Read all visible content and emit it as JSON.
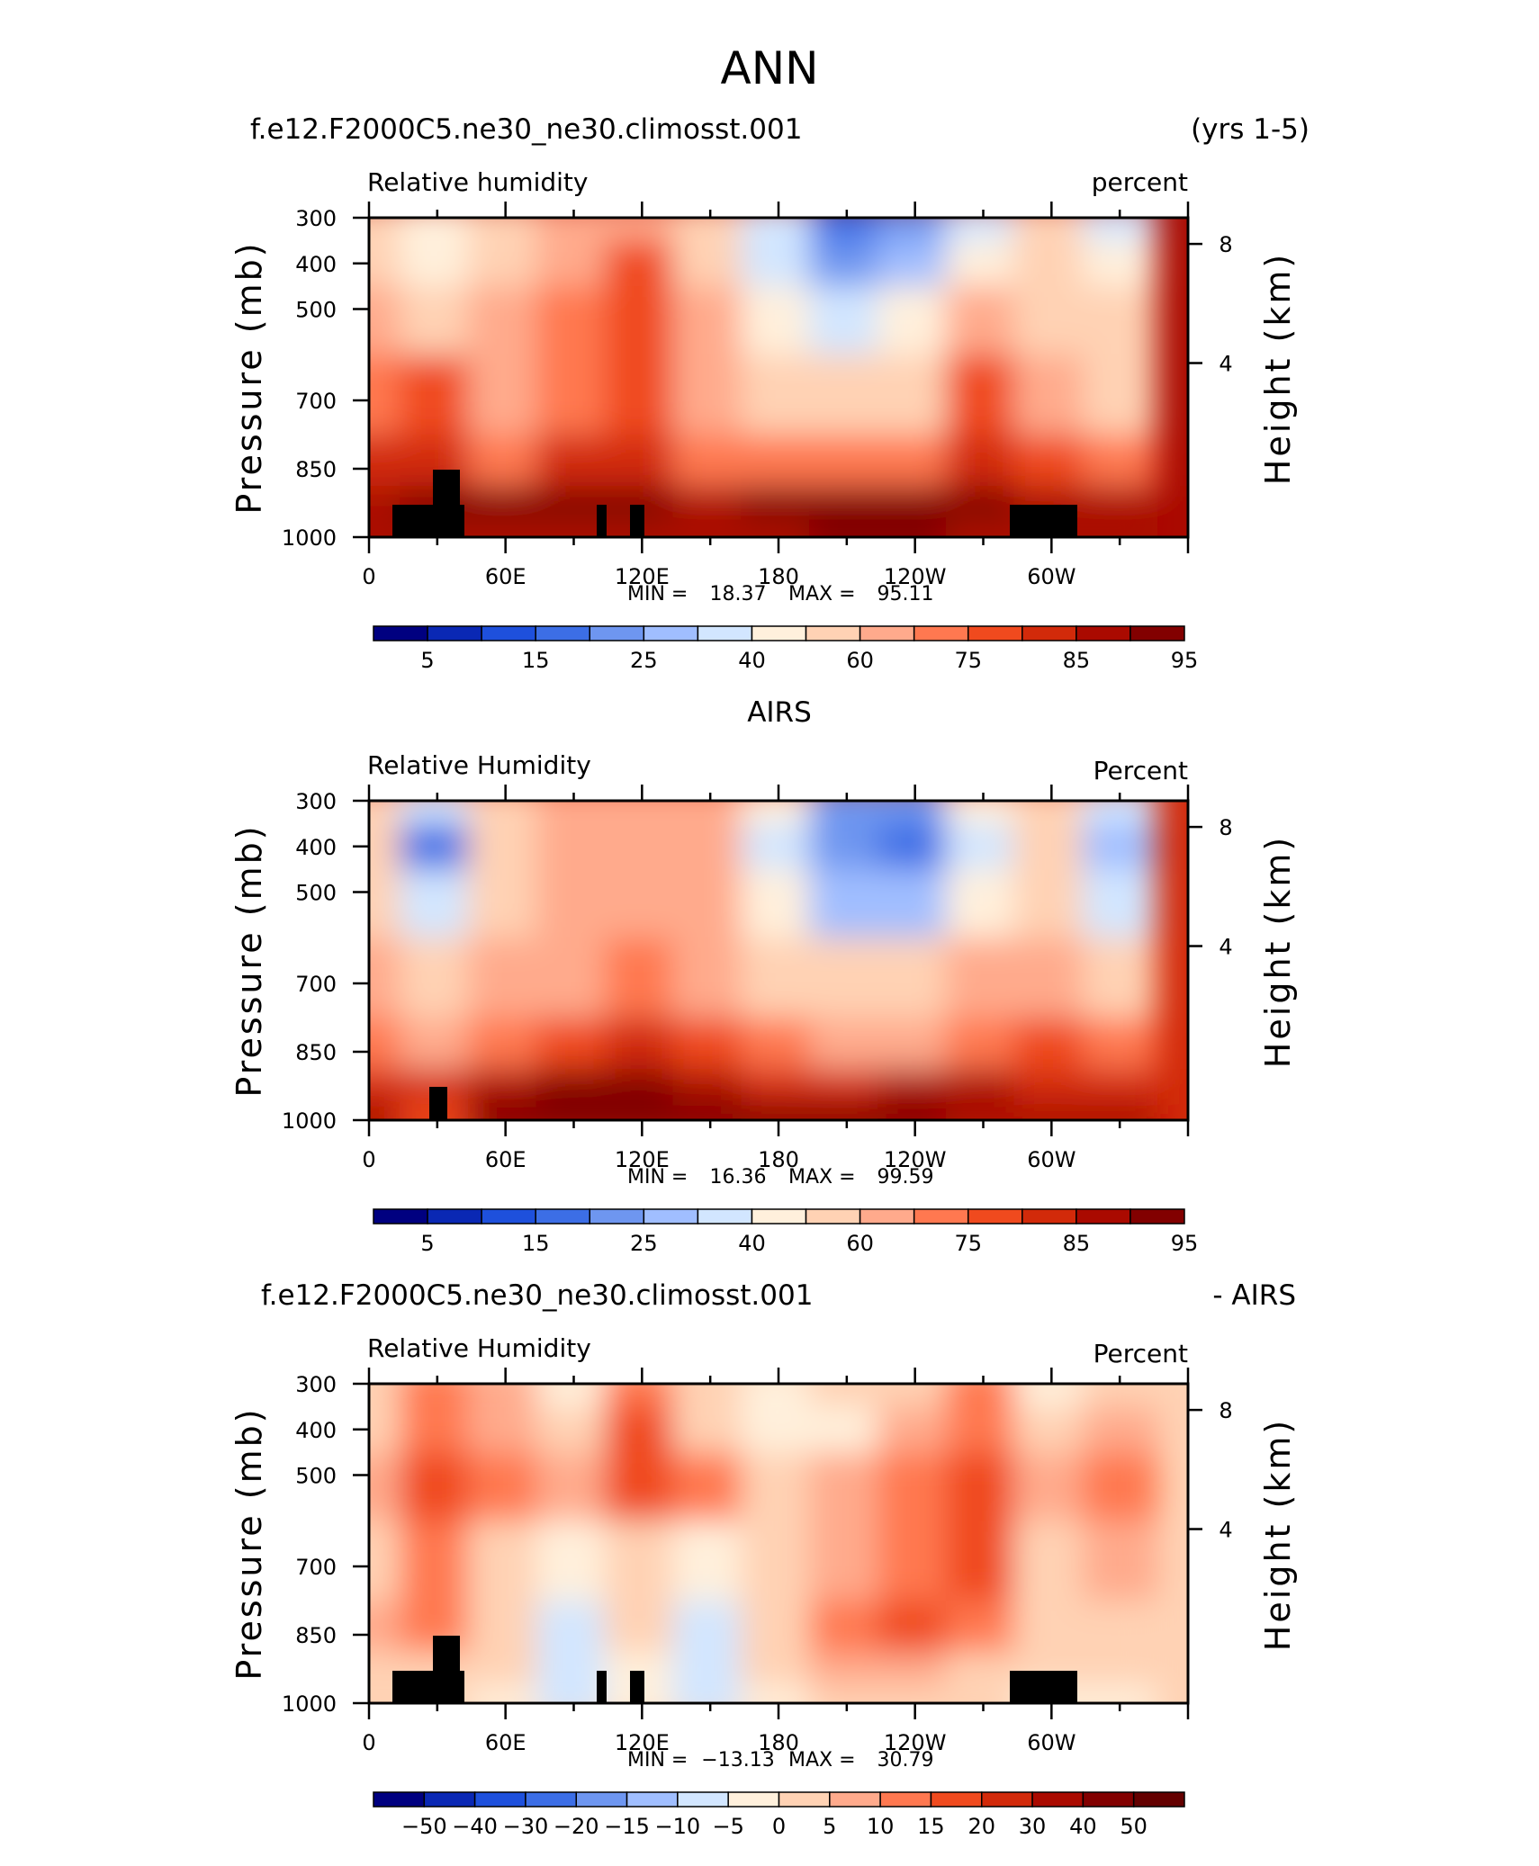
{
  "figure": {
    "title": "ANN"
  },
  "panels": [
    {
      "header_left": "f.e12.F2000C5.ne30_ne30.climosst.001",
      "header_right": "(yrs 1-5)",
      "variable": "Relative  humidity",
      "units": "percent",
      "ylabel_left": "Pressure (mb)",
      "ylabel_right": "Height (km)",
      "stats": {
        "min_label": "MIN =",
        "min": "18.37",
        "max_label": "MAX =",
        "max": "95.11"
      },
      "colorbar": "absolute",
      "field": "model"
    },
    {
      "header_left": "",
      "header_center": "AIRS",
      "header_right": "",
      "variable": "Relative  Humidity",
      "units": "Percent",
      "ylabel_left": "Pressure (mb)",
      "ylabel_right": "Height (km)",
      "stats": {
        "min_label": "MIN =",
        "min": "16.36",
        "max_label": "MAX =",
        "max": "99.59"
      },
      "colorbar": "absolute",
      "field": "obs"
    },
    {
      "header_left": "f.e12.F2000C5.ne30_ne30.climosst.001",
      "header_right": "- AIRS",
      "variable": "Relative  Humidity",
      "units": "Percent",
      "ylabel_left": "Pressure (mb)",
      "ylabel_right": "Height (km)",
      "stats": {
        "min_label": "MIN =",
        "min": "−13.13",
        "max_label": "MAX =",
        "max": "30.79"
      },
      "colorbar": "diff",
      "field": "diff"
    }
  ],
  "axes": {
    "x_ticks": [
      "0",
      "60E",
      "120E",
      "180",
      "120W",
      "60W"
    ],
    "y_ticks": [
      "300",
      "400",
      "500",
      "700",
      "850",
      "1000"
    ],
    "height_ticks": [
      "8",
      "4"
    ]
  },
  "colorbars": {
    "absolute": {
      "colors": [
        "#000080",
        "#0a28b4",
        "#1e50dc",
        "#3c6ee6",
        "#6e96f0",
        "#a0beff",
        "#d2e6ff",
        "#fff0dc",
        "#ffd2b4",
        "#ffaa8c",
        "#ff7850",
        "#f04a1e",
        "#d22a0a",
        "#aa0a00",
        "#820000"
      ],
      "labels": [
        "5",
        "15",
        "25",
        "40",
        "60",
        "75",
        "85",
        "95"
      ],
      "label_positions": [
        1,
        3,
        5,
        7,
        9,
        11,
        13,
        15
      ]
    },
    "diff": {
      "colors": [
        "#000080",
        "#0a28b4",
        "#1e50dc",
        "#3c6ee6",
        "#6e96f0",
        "#a0beff",
        "#d2e6ff",
        "#fff0dc",
        "#ffd2b4",
        "#ffaa8c",
        "#ff7850",
        "#f04a1e",
        "#d22a0a",
        "#aa0a00",
        "#820000",
        "#640000"
      ],
      "labels": [
        "−50",
        "−40",
        "−30",
        "−20",
        "−15",
        "−10",
        "−5",
        "0",
        "5",
        "10",
        "15",
        "20",
        "30",
        "40",
        "50"
      ],
      "label_positions": [
        1,
        2,
        3,
        4,
        5,
        6,
        7,
        8,
        9,
        10,
        11,
        12,
        13,
        14,
        15
      ]
    }
  },
  "chart_data": [
    {
      "type": "heatmap",
      "title": "f.e12.F2000C5.ne30_ne30.climosst.001 (yrs 1-5)",
      "variable": "Relative humidity",
      "units": "percent",
      "x": [
        "0",
        "30E",
        "60E",
        "90E",
        "120E",
        "150E",
        "180",
        "150W",
        "120W",
        "90W",
        "60W",
        "30W"
      ],
      "y": [
        300,
        400,
        500,
        700,
        850,
        925,
        1000
      ],
      "z": [
        [
          55,
          40,
          55,
          65,
          60,
          55,
          35,
          15,
          20,
          35,
          55,
          35
        ],
        [
          58,
          45,
          58,
          68,
          75,
          55,
          35,
          22,
          25,
          45,
          55,
          40
        ],
        [
          62,
          55,
          62,
          72,
          78,
          60,
          45,
          38,
          42,
          60,
          58,
          50
        ],
        [
          70,
          75,
          60,
          72,
          75,
          62,
          55,
          55,
          58,
          75,
          60,
          58
        ],
        [
          80,
          82,
          72,
          80,
          82,
          72,
          70,
          70,
          72,
          82,
          75,
          72
        ],
        [
          88,
          92,
          90,
          90,
          90,
          88,
          90,
          92,
          92,
          90,
          88,
          88
        ],
        [
          85,
          88,
          88,
          88,
          88,
          86,
          88,
          90,
          90,
          88,
          86,
          86
        ]
      ],
      "min": 18.37,
      "max": 95.11,
      "levels": [
        5,
        10,
        15,
        20,
        25,
        30,
        40,
        50,
        60,
        70,
        75,
        80,
        85,
        90,
        95
      ]
    },
    {
      "type": "heatmap",
      "title": "AIRS",
      "variable": "Relative Humidity",
      "units": "Percent",
      "x": [
        "0",
        "30E",
        "60E",
        "90E",
        "120E",
        "150E",
        "180",
        "150W",
        "120W",
        "90W",
        "60W",
        "30W"
      ],
      "y": [
        300,
        400,
        500,
        700,
        850,
        925,
        1000
      ],
      "z": [
        [
          58,
          30,
          58,
          66,
          60,
          60,
          40,
          20,
          22,
          40,
          58,
          32
        ],
        [
          58,
          18,
          52,
          64,
          60,
          60,
          38,
          20,
          18,
          38,
          56,
          28
        ],
        [
          55,
          32,
          50,
          62,
          62,
          60,
          40,
          25,
          25,
          42,
          55,
          35
        ],
        [
          62,
          52,
          60,
          66,
          70,
          66,
          58,
          50,
          52,
          62,
          62,
          58
        ],
        [
          72,
          68,
          72,
          76,
          80,
          76,
          70,
          65,
          66,
          72,
          76,
          72
        ],
        [
          84,
          80,
          88,
          90,
          92,
          88,
          84,
          84,
          86,
          86,
          84,
          84
        ],
        [
          86,
          76,
          90,
          92,
          92,
          90,
          90,
          92,
          95,
          88,
          88,
          88
        ]
      ],
      "min": 16.36,
      "max": 99.59,
      "levels": [
        5,
        10,
        15,
        20,
        25,
        30,
        40,
        50,
        60,
        70,
        75,
        80,
        85,
        90,
        95
      ]
    },
    {
      "type": "heatmap",
      "title": "f.e12.F2000C5.ne30_ne30.climosst.001 - AIRS",
      "variable": "Relative Humidity",
      "units": "Percent",
      "x": [
        "0",
        "30E",
        "60E",
        "90E",
        "120E",
        "150E",
        "180",
        "150W",
        "120W",
        "90W",
        "60W",
        "30W"
      ],
      "y": [
        300,
        400,
        500,
        700,
        850,
        925,
        1000
      ],
      "z": [
        [
          4,
          12,
          6,
          -2,
          10,
          4,
          -2,
          0,
          2,
          14,
          -1,
          4
        ],
        [
          3,
          10,
          8,
          2,
          15,
          2,
          -3,
          -1,
          5,
          10,
          4,
          8
        ],
        [
          6,
          16,
          10,
          8,
          18,
          10,
          4,
          8,
          14,
          16,
          8,
          14
        ],
        [
          2,
          14,
          2,
          -4,
          4,
          -4,
          4,
          8,
          14,
          18,
          0,
          6
        ],
        [
          6,
          12,
          0,
          -6,
          2,
          -6,
          4,
          10,
          16,
          10,
          0,
          4
        ],
        [
          2,
          4,
          0,
          -6,
          -2,
          -6,
          2,
          6,
          8,
          4,
          2,
          2
        ],
        [
          0,
          4,
          -2,
          -6,
          -4,
          -6,
          -2,
          0,
          0,
          0,
          -1,
          -1
        ]
      ],
      "min": -13.13,
      "max": 30.79,
      "levels": [
        -50,
        -40,
        -30,
        -20,
        -15,
        -10,
        -5,
        0,
        5,
        10,
        15,
        20,
        30,
        40,
        50
      ]
    }
  ]
}
